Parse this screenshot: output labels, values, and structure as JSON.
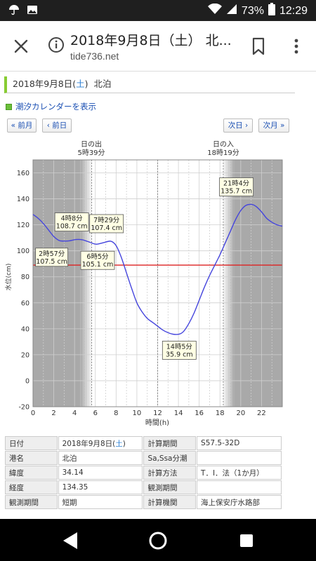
{
  "status_bar": {
    "battery": "73%",
    "time": "12:29"
  },
  "browser": {
    "title": "2018年9月8日（土） 北...",
    "domain": "tide736.net"
  },
  "page": {
    "heading_date": "2018年9月8日",
    "heading_dow": "土",
    "heading_place": "北泊",
    "calendar_link": "潮汐カレンダーを表示",
    "nav": {
      "prev_month": "« 前月",
      "prev_day": "‹ 前日",
      "next_day": "次日 ›",
      "next_month": "次月 »"
    }
  },
  "sun": {
    "sunrise_label": "日の出",
    "sunrise_time": "5時39分",
    "sunset_label": "日の入",
    "sunset_time": "18時19分"
  },
  "chart_data": {
    "type": "line",
    "xlabel": "時間(h)",
    "ylabel": "水位(cm)",
    "xlim": [
      0,
      24
    ],
    "ylim": [
      -20,
      170
    ],
    "xticks": [
      0,
      2,
      4,
      6,
      8,
      10,
      12,
      14,
      16,
      18,
      20,
      22
    ],
    "yticks": [
      -20,
      0,
      20,
      40,
      60,
      80,
      100,
      120,
      140,
      160
    ],
    "grid": true,
    "reference_line": 89,
    "series": [
      {
        "x": [
          0,
          0.5,
          1,
          1.5,
          2,
          2.5,
          2.95,
          3.5,
          4.13,
          4.75,
          5.5,
          6.08,
          6.75,
          7.48,
          8.0,
          8.5,
          9,
          9.5,
          10,
          10.5,
          11,
          11.5,
          12,
          12.5,
          13,
          13.5,
          14.08,
          14.5,
          15,
          15.5,
          16,
          16.5,
          17,
          17.5,
          18,
          18.5,
          19,
          19.5,
          20,
          20.5,
          21.07,
          21.5,
          22,
          22.5,
          23,
          23.5,
          24
        ],
        "y": [
          128,
          125,
          121,
          116,
          111,
          108,
          107.5,
          107.7,
          108.7,
          108.5,
          106.5,
          105.1,
          106.2,
          107.4,
          104,
          95,
          83,
          71,
          60,
          53,
          48,
          45,
          42,
          39,
          37,
          35.8,
          35.9,
          38,
          44,
          52,
          62,
          72,
          81,
          89,
          97,
          106,
          115,
          124,
          131,
          135,
          135.7,
          134,
          130,
          125,
          122,
          120,
          119
        ]
      }
    ],
    "annotations": [
      {
        "time": "2時57分",
        "value": "107.5 cm"
      },
      {
        "time": "4時8分",
        "value": "108.7 cm"
      },
      {
        "time": "6時5分",
        "value": "105.1 cm"
      },
      {
        "time": "7時29分",
        "value": "107.4 cm"
      },
      {
        "time": "14時5分",
        "value": "35.9 cm"
      },
      {
        "time": "21時4分",
        "value": "135.7 cm"
      }
    ]
  },
  "info_table": [
    {
      "k1": "日付",
      "v1": "2018年9月8日",
      "v1_dow": "土",
      "k2": "計算期間",
      "v2": "S57.5-32D"
    },
    {
      "k1": "港名",
      "v1": "北泊",
      "v1_dow": "",
      "k2": "Sa,Ssa分潮",
      "v2": ""
    },
    {
      "k1": "緯度",
      "v1": "34.14",
      "v1_dow": "",
      "k2": "計算方法",
      "v2": "T．I．法（1か月）"
    },
    {
      "k1": "経度",
      "v1": "134.35",
      "v1_dow": "",
      "k2": "観測期間",
      "v2": ""
    },
    {
      "k1": "観測期間",
      "v1": "短期",
      "v1_dow": "",
      "k2": "計算機関",
      "v2": "海上保安庁水路部"
    }
  ],
  "colors": {
    "tide_line": "#4444dd",
    "reference_line": "#dd2222",
    "night_shade": "#aaaaaa",
    "heading_accent": "#88cc33"
  }
}
